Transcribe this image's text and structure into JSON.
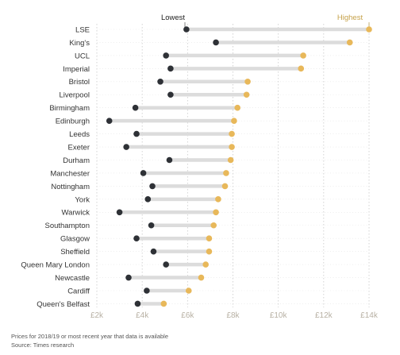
{
  "chart_data": {
    "type": "dumbbell",
    "categories": [
      "LSE",
      "King's",
      "UCL",
      "Imperial",
      "Bristol",
      "Liverpool",
      "Birmingham",
      "Edinburgh",
      "Leeds",
      "Exeter",
      "Durham",
      "Manchester",
      "Nottingham",
      "York",
      "Warwick",
      "Southampton",
      "Glasgow",
      "Sheffield",
      "Queen Mary London",
      "Newcastle",
      "Cardiff",
      "Queen's Belfast"
    ],
    "series": [
      {
        "name": "Lowest",
        "values": [
          5.95,
          7.25,
          5.05,
          5.25,
          4.8,
          5.25,
          3.7,
          2.55,
          3.75,
          3.3,
          5.2,
          4.05,
          4.45,
          4.25,
          3.0,
          4.4,
          3.75,
          4.5,
          5.05,
          3.4,
          4.2,
          3.8
        ]
      },
      {
        "name": "Highest",
        "values": [
          14.0,
          13.15,
          11.1,
          11.0,
          8.65,
          8.6,
          8.2,
          8.05,
          7.95,
          7.95,
          7.9,
          7.7,
          7.65,
          7.35,
          7.25,
          7.15,
          6.95,
          6.95,
          6.8,
          6.6,
          6.05,
          4.95
        ]
      }
    ],
    "x_ticks": [
      "£2k",
      "£4k",
      "£6k",
      "£8k",
      "£10k",
      "£12k",
      "£14k"
    ],
    "xlim": [
      2,
      14
    ],
    "legend_lowest": "Lowest",
    "legend_highest": "Highest",
    "grid": true,
    "colors": {
      "lowest": "#2e3136",
      "highest": "#e8b85a",
      "connector": "#dcdcdc",
      "grid": "#c9c9c9",
      "legend_highest_text": "#c6a24a"
    }
  },
  "footer": {
    "note": "Prices for 2018/19 or most recent year that data is available",
    "source": "Source: Times research"
  }
}
